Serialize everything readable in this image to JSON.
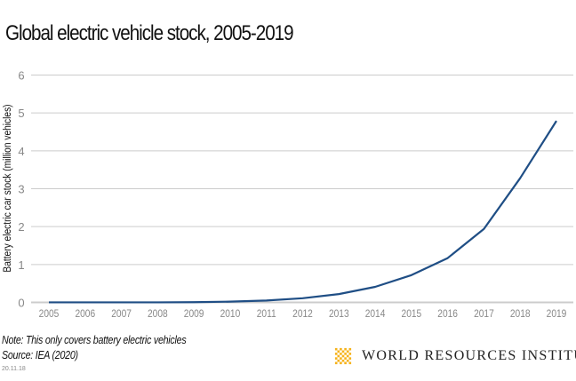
{
  "chart_data": {
    "type": "line",
    "title": "Global electric vehicle stock, 2005-2019",
    "xlabel": "",
    "ylabel": "Battery electric car stock (million vehicles)",
    "x": [
      "2005",
      "2006",
      "2007",
      "2008",
      "2009",
      "2010",
      "2011",
      "2012",
      "2013",
      "2014",
      "2015",
      "2016",
      "2017",
      "2018",
      "2019"
    ],
    "series": [
      {
        "values": [
          0.001,
          0.001,
          0.001,
          0.001,
          0.005,
          0.02,
          0.05,
          0.11,
          0.22,
          0.41,
          0.72,
          1.17,
          1.94,
          3.28,
          4.79
        ],
        "color": "#1f4e85"
      }
    ],
    "ylim": [
      0,
      6
    ],
    "yticks": [
      "0",
      "1",
      "2",
      "3",
      "4",
      "5",
      "6"
    ],
    "grid": true
  },
  "footer": {
    "note": "Note: This only covers battery electric vehicles",
    "source": "Source: IEA (2020)",
    "date": "20.11.18",
    "logo_text": "WORLD RESOURCES INSTITUTE",
    "logo_color": "#f6b21a"
  }
}
